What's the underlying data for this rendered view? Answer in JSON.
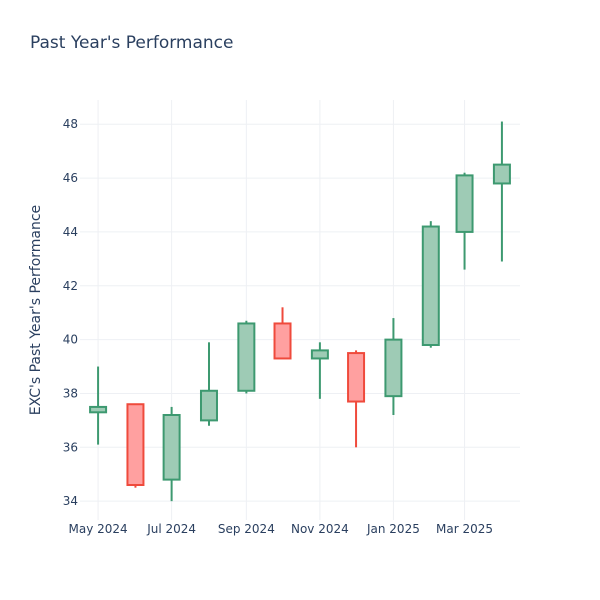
{
  "chart_data": {
    "type": "candlestick",
    "title": "Past Year's Performance",
    "xlabel": "",
    "ylabel": "EXC's Past Year's Performance",
    "ylim": [
      33.3,
      48.9
    ],
    "yticks": [
      34,
      36,
      38,
      40,
      42,
      44,
      46,
      48
    ],
    "xticks": [
      {
        "label": "May 2024",
        "date": "2024-05-01"
      },
      {
        "label": "Jul 2024",
        "date": "2024-07-01"
      },
      {
        "label": "Sep 2024",
        "date": "2024-09-01"
      },
      {
        "label": "Nov 2024",
        "date": "2024-11-01"
      },
      {
        "label": "Jan 2025",
        "date": "2025-01-01"
      },
      {
        "label": "Mar 2025",
        "date": "2025-03-01"
      }
    ],
    "grid": true,
    "increasing_color": "#3d9970",
    "increasing_fill": "#9ecbb5",
    "decreasing_color": "#ef4a3c",
    "decreasing_fill": "#ffa0a0",
    "candles": [
      {
        "date": "2024-05-01",
        "open": 37.3,
        "high": 39.0,
        "low": 36.1,
        "close": 37.5
      },
      {
        "date": "2024-06-01",
        "open": 37.6,
        "high": 37.6,
        "low": 34.5,
        "close": 34.6
      },
      {
        "date": "2024-07-01",
        "open": 34.8,
        "high": 37.5,
        "low": 34.0,
        "close": 37.2
      },
      {
        "date": "2024-08-01",
        "open": 37.0,
        "high": 39.9,
        "low": 36.8,
        "close": 38.1
      },
      {
        "date": "2024-09-01",
        "open": 38.1,
        "high": 40.7,
        "low": 38.0,
        "close": 40.6
      },
      {
        "date": "2024-10-01",
        "open": 40.6,
        "high": 41.2,
        "low": 39.3,
        "close": 39.3
      },
      {
        "date": "2024-11-01",
        "open": 39.3,
        "high": 39.9,
        "low": 37.8,
        "close": 39.6
      },
      {
        "date": "2024-12-01",
        "open": 39.5,
        "high": 39.6,
        "low": 36.0,
        "close": 37.7
      },
      {
        "date": "2025-01-01",
        "open": 37.9,
        "high": 40.8,
        "low": 37.2,
        "close": 40.0
      },
      {
        "date": "2025-02-01",
        "open": 39.8,
        "high": 44.4,
        "low": 39.7,
        "close": 44.2
      },
      {
        "date": "2025-03-01",
        "open": 44.0,
        "high": 46.2,
        "low": 42.6,
        "close": 46.1
      },
      {
        "date": "2025-04-01",
        "open": 45.8,
        "high": 48.1,
        "low": 42.9,
        "close": 46.5
      }
    ]
  }
}
